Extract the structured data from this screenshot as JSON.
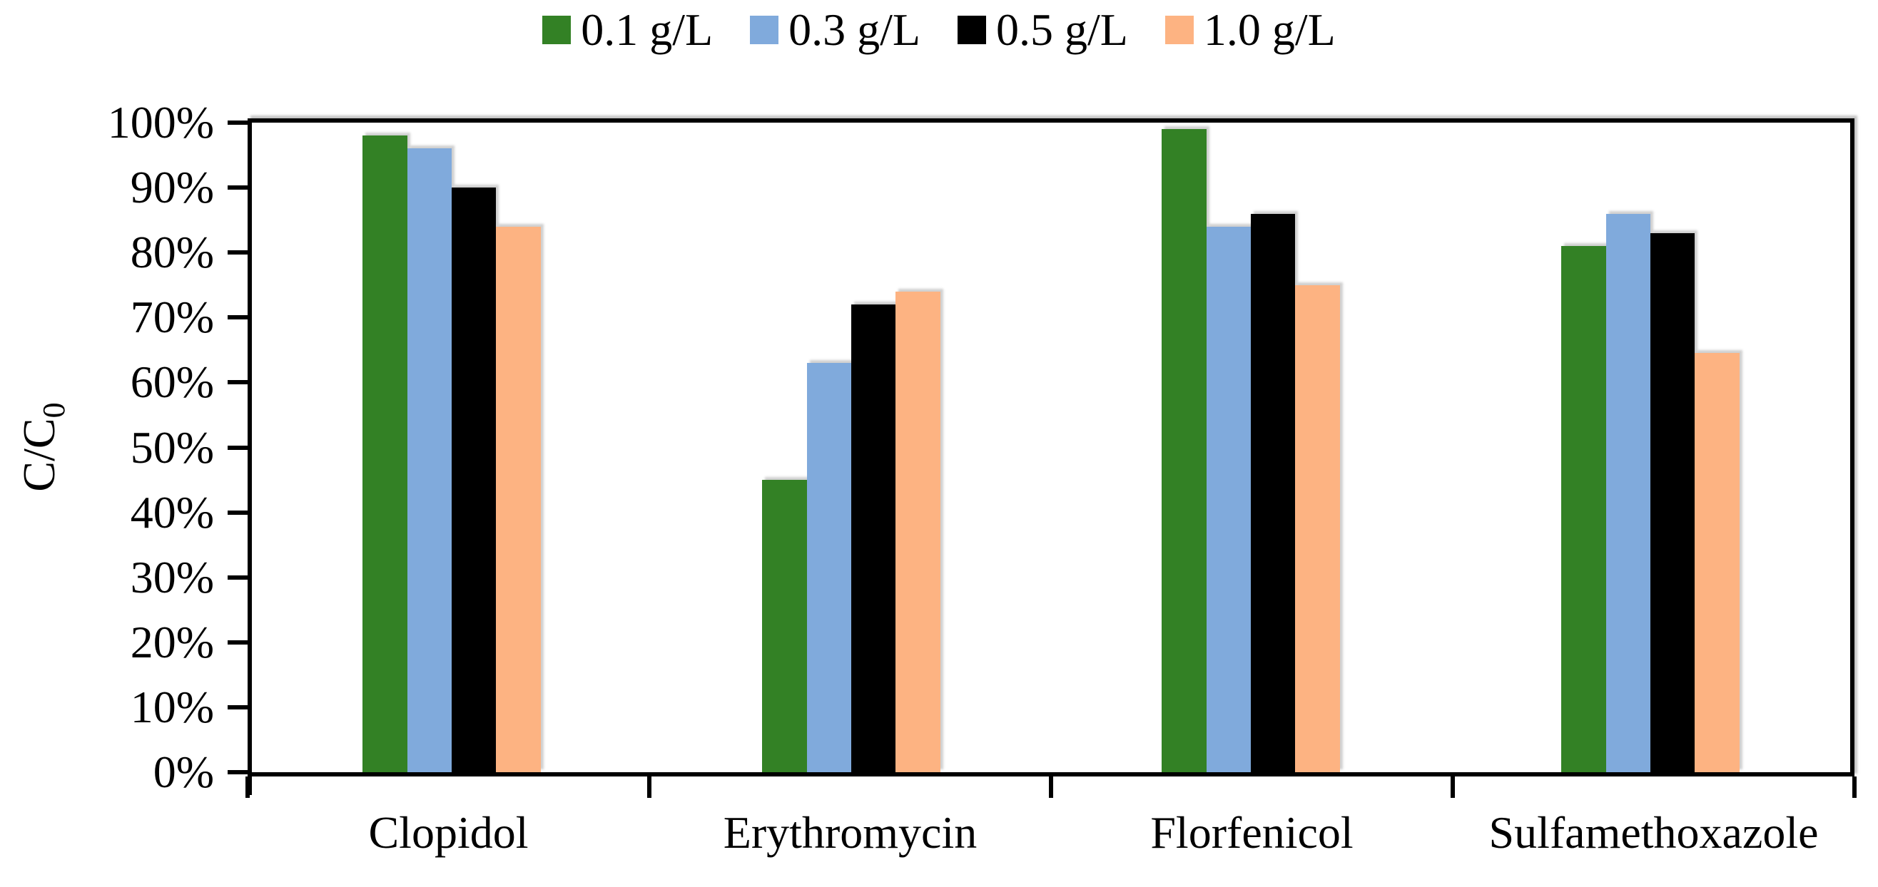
{
  "chart_data": {
    "type": "bar",
    "title": "",
    "categories": [
      "Clopidol",
      "Erythromycin",
      "Florfenicol",
      "Sulfamethoxazole"
    ],
    "series": [
      {
        "name": "0.1 g/L",
        "color": "#338125",
        "values": [
          98,
          45,
          99,
          81
        ]
      },
      {
        "name": "0.3 g/L",
        "color": "#80AADC",
        "values": [
          96,
          63,
          84,
          86
        ]
      },
      {
        "name": "0.5 g/L",
        "color": "#000000",
        "values": [
          90,
          72,
          86,
          83
        ]
      },
      {
        "name": "1.0 g/L",
        "color": "#FDB382",
        "values": [
          84,
          74,
          75,
          64.5
        ]
      }
    ],
    "xlabel": "",
    "ylabel": "C/C0",
    "ylim": [
      0,
      100
    ],
    "ytick_step": 10,
    "ytick_format": "percent",
    "grid": false,
    "legend_position": "top",
    "plot_border": true,
    "bar_shadow": true
  },
  "y_axis": {
    "title_main": "C/C",
    "title_sub": "0",
    "tick_labels": [
      "100%",
      "90%",
      "80%",
      "70%",
      "60%",
      "50%",
      "40%",
      "30%",
      "20%",
      "10%",
      "0%"
    ]
  }
}
